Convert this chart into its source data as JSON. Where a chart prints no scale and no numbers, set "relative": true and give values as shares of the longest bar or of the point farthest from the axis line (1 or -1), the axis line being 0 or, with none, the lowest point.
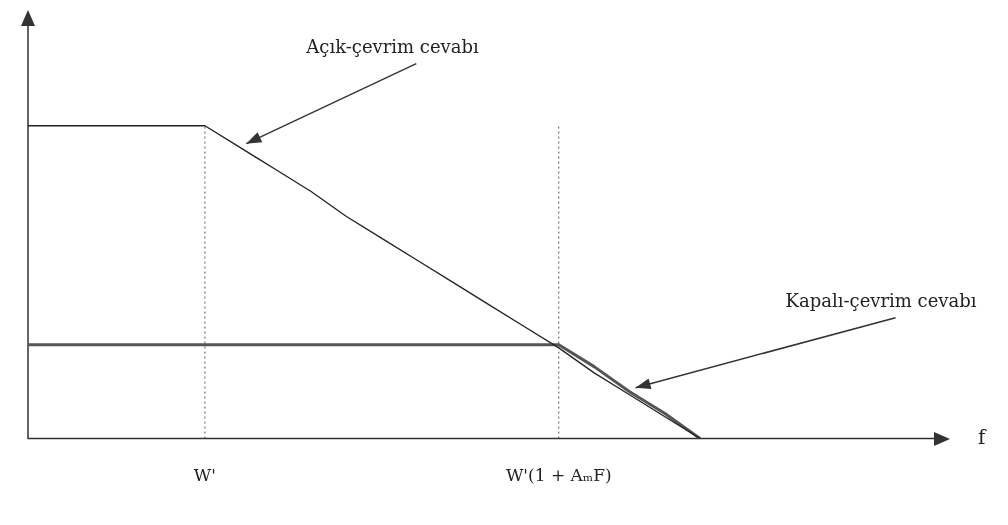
{
  "chart_data": {
    "type": "line",
    "relative": true,
    "xlabel": "f",
    "categories": [
      null,
      null,
      null,
      null,
      null,
      "W'",
      null,
      null,
      null,
      null,
      null,
      null,
      null,
      null,
      null,
      "W'(1 + AₘF)",
      null,
      null,
      null,
      null,
      null,
      null,
      null,
      null,
      null,
      null,
      null
    ],
    "series": [
      {
        "name": "Açık-çevrim cevabı",
        "color": "#222222",
        "values": [
          1,
          1,
          1,
          1,
          1,
          1,
          0.93,
          0.86,
          0.79,
          0.71,
          0.64,
          0.57,
          0.5,
          0.43,
          0.36,
          0.29,
          0.21,
          0.14,
          0.07,
          0,
          null,
          null,
          null,
          null,
          null,
          null,
          null
        ]
      },
      {
        "name": "Kapalı-çevrim cevabı",
        "color": "#555555",
        "values": [
          0.3,
          0.3,
          0.3,
          0.3,
          0.3,
          0.3,
          0.3,
          0.3,
          0.3,
          0.3,
          0.3,
          0.3,
          0.3,
          0.3,
          0.3,
          0.3,
          0.23,
          0.15,
          0.08,
          0,
          null,
          null,
          null,
          null,
          null,
          null,
          null
        ]
      }
    ],
    "ref_lines": [
      {
        "axis": "x",
        "value": "W'",
        "line_style": "dotted",
        "color": "#555555"
      },
      {
        "axis": "x",
        "value": "W'(1 + AₘF)",
        "line_style": "dotted",
        "color": "#555555"
      }
    ],
    "marker": "none",
    "line_style": "solid",
    "grid": false,
    "legend": false
  }
}
